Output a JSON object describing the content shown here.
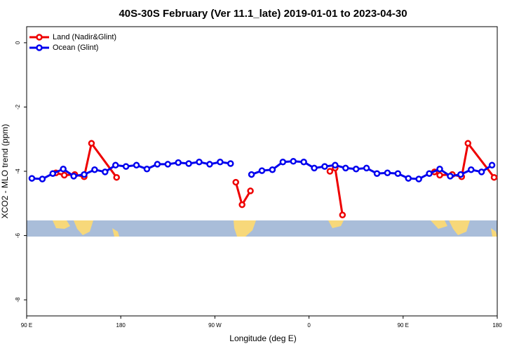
{
  "chart_data": {
    "type": "line",
    "title": "40S-30S February (Ver 11.1_late)   2019-01-01 to 2023-04-30",
    "x_label": "Longitude (deg E)",
    "y_label": "XCO2 - MLO trend (ppm)",
    "xlim": [
      90,
      540
    ],
    "ylim": [
      -8.5,
      0.5
    ],
    "xticks": [
      {
        "value": 90,
        "label": "90 E"
      },
      {
        "value": 180,
        "label": "180"
      },
      {
        "value": 270,
        "label": "90 W"
      },
      {
        "value": 360,
        "label": "0"
      },
      {
        "value": 450,
        "label": "90 E"
      },
      {
        "value": 540,
        "label": "180"
      }
    ],
    "yticks": [
      0,
      -2,
      -4,
      -6,
      -8
    ],
    "legend": "top-left",
    "series": [
      {
        "name": "Land (Nadir&Glint)",
        "color": "#ee0000",
        "x": [
          118,
          126,
          136,
          145,
          152,
          176,
          200,
          290,
          296,
          304,
          340,
          380,
          385,
          392,
          430,
          480,
          485,
          497,
          506,
          512,
          537
        ],
        "values": [
          -4.05,
          -4.12,
          -4.1,
          -4.17,
          -3.13,
          -4.19,
          null,
          -4.34,
          -5.04,
          -4.61,
          null,
          -4.0,
          -3.9,
          -5.36,
          null,
          -4.02,
          -4.12,
          -4.1,
          -4.17,
          -3.13,
          -4.19
        ]
      },
      {
        "name": "Ocean (Glint)",
        "color": "#0000ee",
        "x": [
          95,
          105,
          115,
          125,
          135,
          145,
          155,
          165,
          175,
          185,
          195,
          205,
          215,
          225,
          235,
          245,
          255,
          265,
          275,
          285,
          295,
          305,
          315,
          325,
          335,
          345,
          355,
          365,
          375,
          385,
          395,
          405,
          415,
          425,
          435,
          445,
          455,
          465,
          475,
          485,
          495,
          505,
          515,
          525,
          535
        ],
        "values": [
          -4.22,
          -4.24,
          -4.07,
          -3.93,
          -4.15,
          -4.1,
          -3.95,
          -4.02,
          -3.81,
          -3.85,
          -3.81,
          -3.93,
          -3.78,
          -3.78,
          -3.73,
          -3.76,
          -3.71,
          -3.78,
          -3.71,
          -3.76,
          null,
          -4.1,
          -3.98,
          -3.95,
          -3.71,
          -3.69,
          -3.71,
          -3.9,
          -3.85,
          -3.81,
          -3.9,
          -3.93,
          -3.9,
          -4.07,
          -4.05,
          -4.07,
          -4.22,
          -4.24,
          -4.07,
          -3.93,
          -4.15,
          -4.1,
          -3.95,
          -4.02,
          -3.81
        ]
      }
    ]
  }
}
